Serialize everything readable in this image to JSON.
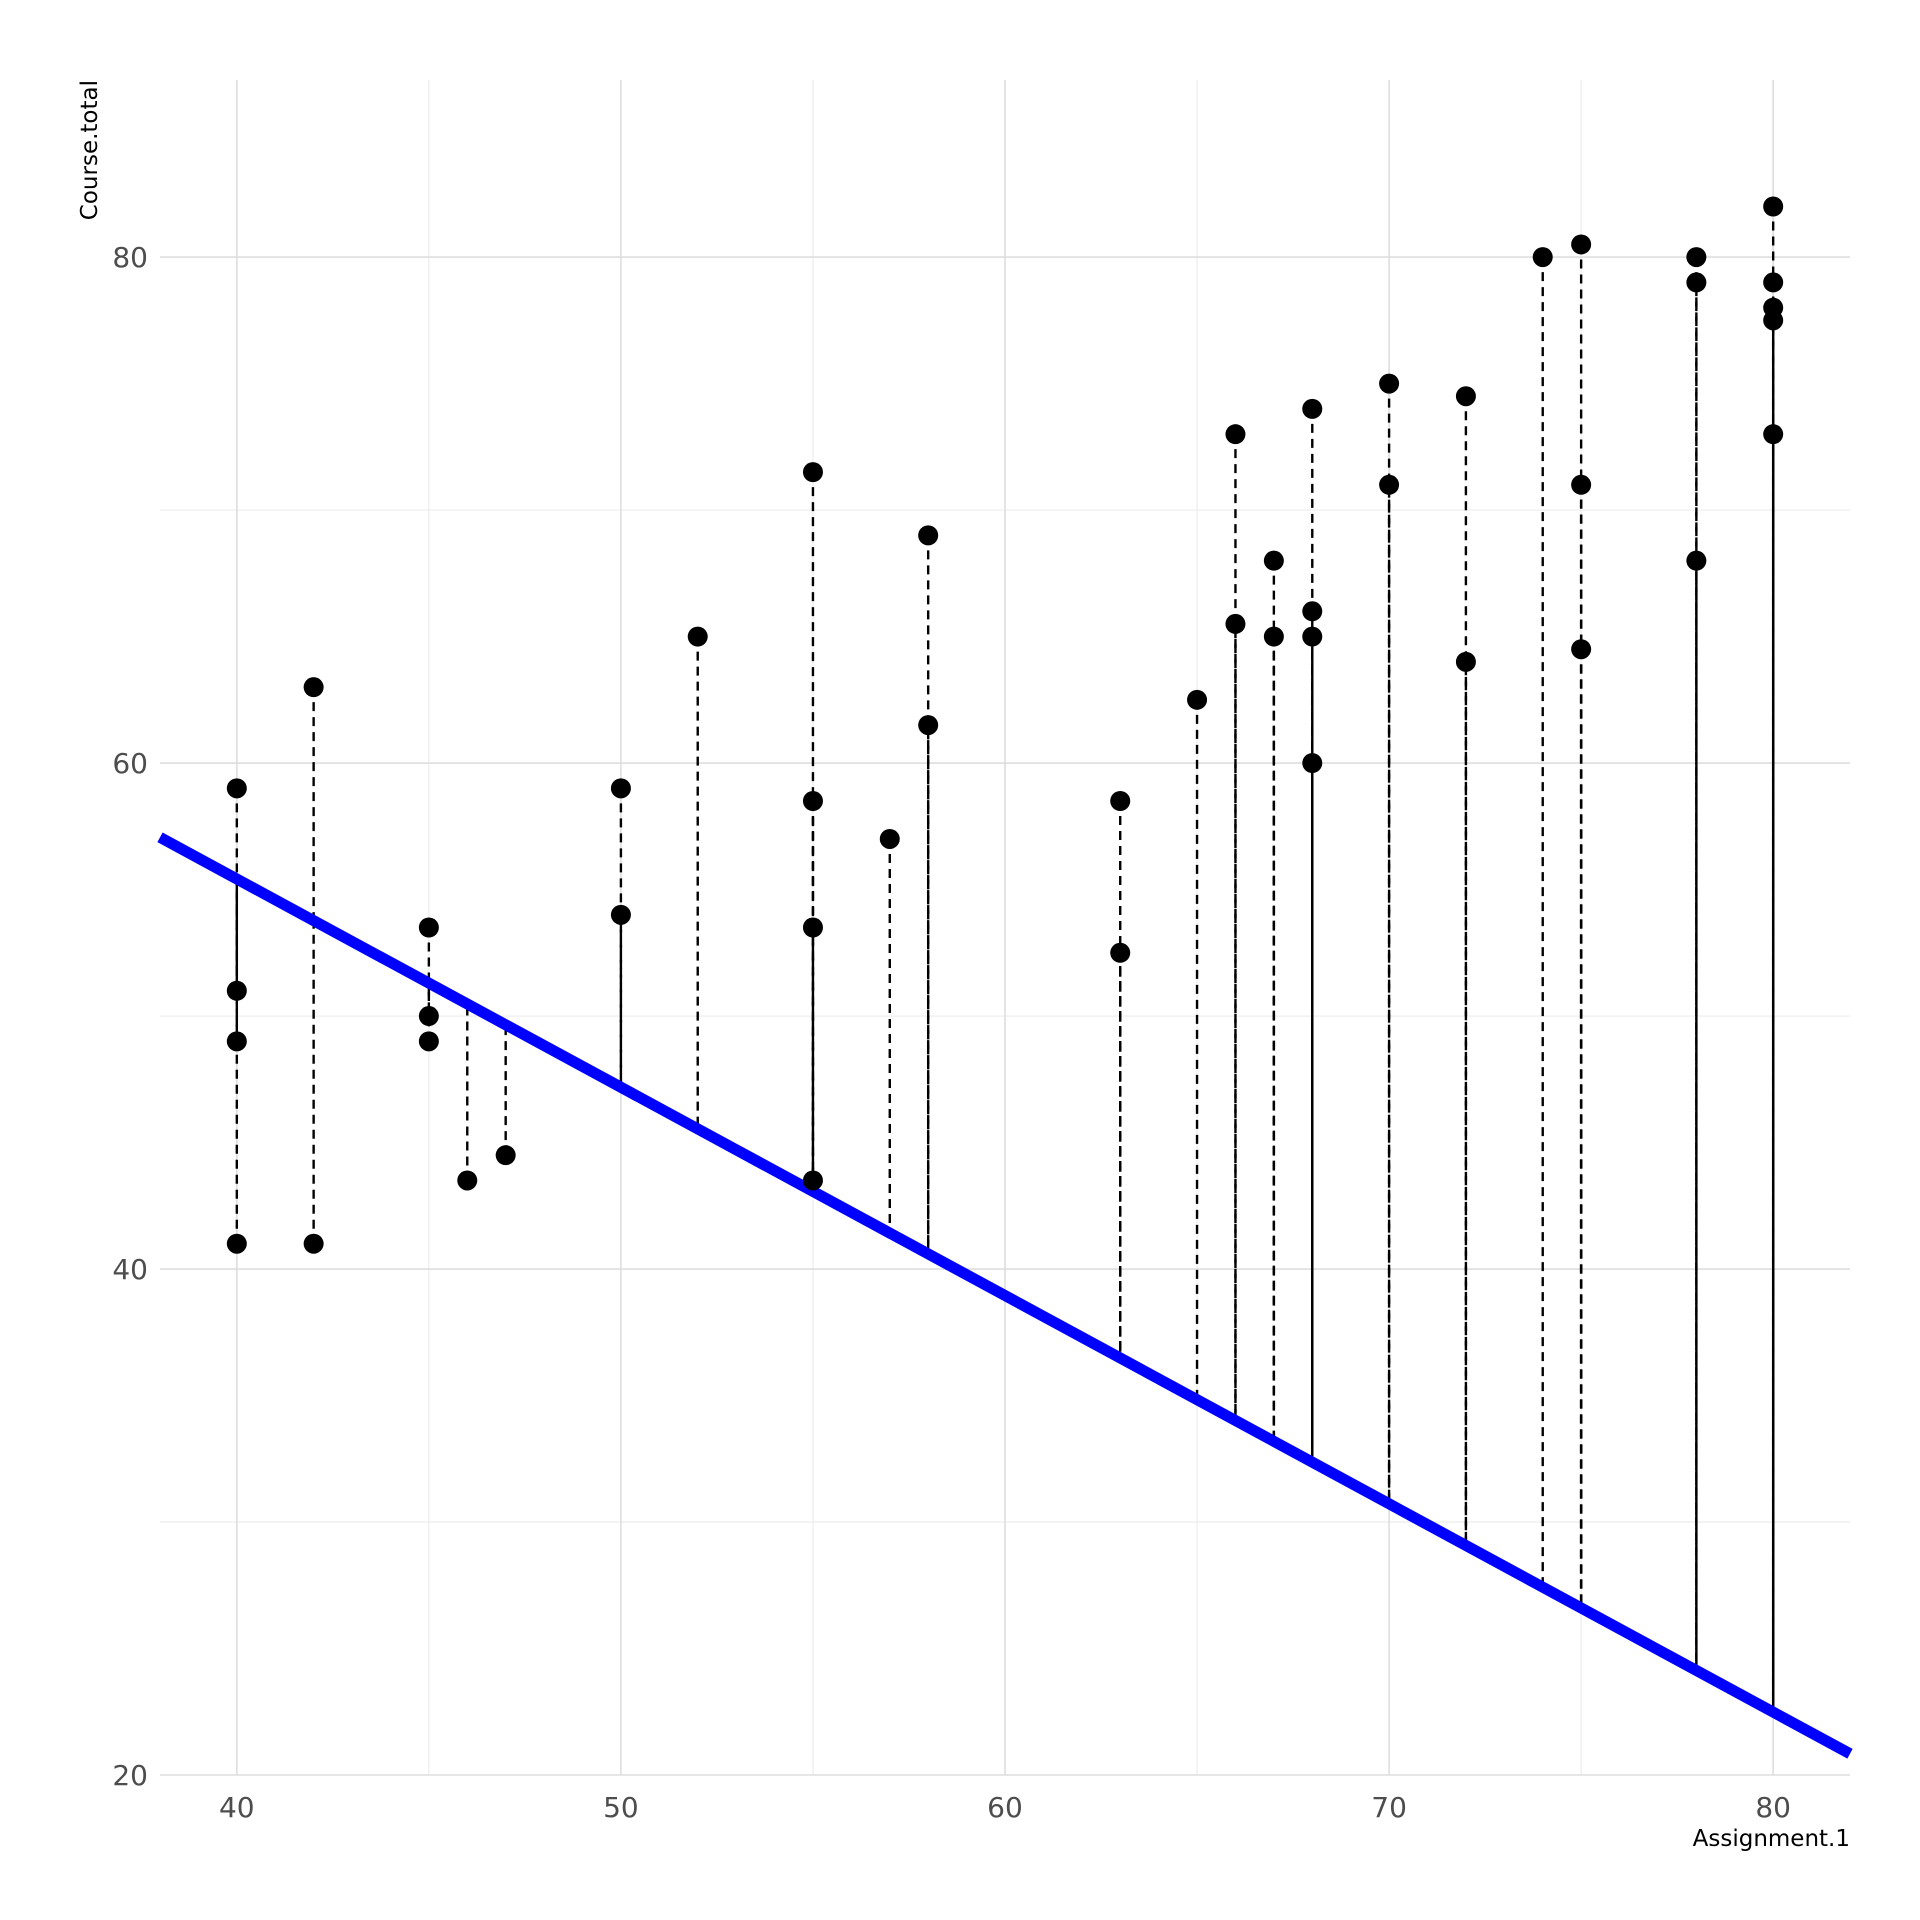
{
  "chart_data": {
    "type": "scatter",
    "title": "",
    "xlabel": "Assignment.1",
    "ylabel": "Course.total",
    "xlim": [
      38,
      82
    ],
    "ylim": [
      20,
      87
    ],
    "x_ticks": [
      40,
      50,
      60,
      70,
      80
    ],
    "y_ticks": [
      20,
      40,
      60,
      80
    ],
    "grid": true,
    "points": [
      {
        "x": 40,
        "y": 59
      },
      {
        "x": 40,
        "y": 51
      },
      {
        "x": 40,
        "y": 49
      },
      {
        "x": 40,
        "y": 41
      },
      {
        "x": 42,
        "y": 63
      },
      {
        "x": 42,
        "y": 41
      },
      {
        "x": 45,
        "y": 53.5
      },
      {
        "x": 45,
        "y": 50
      },
      {
        "x": 45,
        "y": 49
      },
      {
        "x": 46,
        "y": 43.5
      },
      {
        "x": 47,
        "y": 44.5
      },
      {
        "x": 50,
        "y": 59
      },
      {
        "x": 50,
        "y": 54
      },
      {
        "x": 52,
        "y": 65
      },
      {
        "x": 55,
        "y": 71.5
      },
      {
        "x": 55,
        "y": 58.5
      },
      {
        "x": 55,
        "y": 53.5
      },
      {
        "x": 55,
        "y": 43.5
      },
      {
        "x": 57,
        "y": 57
      },
      {
        "x": 58,
        "y": 69
      },
      {
        "x": 58,
        "y": 61.5
      },
      {
        "x": 63,
        "y": 58.5
      },
      {
        "x": 63,
        "y": 52.5
      },
      {
        "x": 65,
        "y": 62.5
      },
      {
        "x": 66,
        "y": 73
      },
      {
        "x": 66,
        "y": 65.5
      },
      {
        "x": 67,
        "y": 68
      },
      {
        "x": 67,
        "y": 65
      },
      {
        "x": 68,
        "y": 74
      },
      {
        "x": 68,
        "y": 66
      },
      {
        "x": 68,
        "y": 65
      },
      {
        "x": 68,
        "y": 60
      },
      {
        "x": 70,
        "y": 75
      },
      {
        "x": 70,
        "y": 71
      },
      {
        "x": 72,
        "y": 74.5
      },
      {
        "x": 72,
        "y": 64
      },
      {
        "x": 74,
        "y": 80
      },
      {
        "x": 75,
        "y": 80.5
      },
      {
        "x": 75,
        "y": 71
      },
      {
        "x": 75,
        "y": 64.5
      },
      {
        "x": 78,
        "y": 80
      },
      {
        "x": 78,
        "y": 79
      },
      {
        "x": 78,
        "y": 68
      },
      {
        "x": 80,
        "y": 82
      },
      {
        "x": 80,
        "y": 79
      },
      {
        "x": 80,
        "y": 78
      },
      {
        "x": 80,
        "y": 77.5
      },
      {
        "x": 80,
        "y": 73
      }
    ],
    "line": {
      "color": "#0000ff",
      "intercept": 88.35,
      "slope": -0.8233
    },
    "residual_style": "dashed",
    "point_color": "#000000"
  }
}
